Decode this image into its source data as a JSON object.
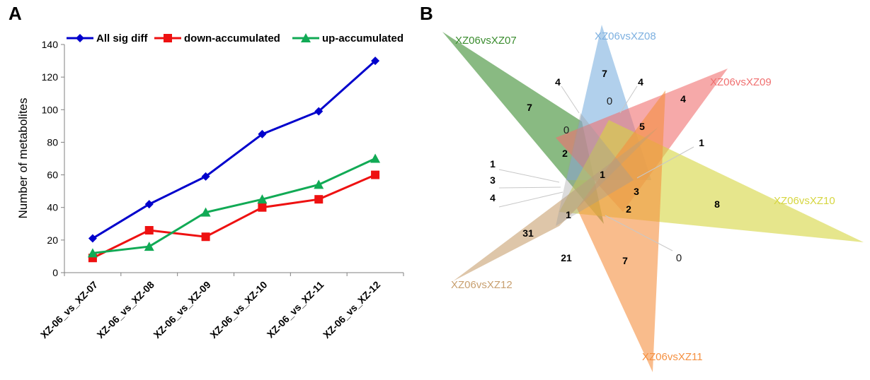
{
  "panels": {
    "a_label": "A",
    "b_label": "B"
  },
  "chart_data": [
    {
      "type": "line",
      "title": "",
      "xlabel": "",
      "ylabel": "Number of metabolites",
      "categories": [
        "XZ-06_vs_XZ-07",
        "XZ-06_vs_XZ-08",
        "XZ-06_vs_XZ-09",
        "XZ-06_vs_XZ-10",
        "XZ-06_vs_XZ-11",
        "XZ-06_vs_XZ-12"
      ],
      "ylim": [
        0,
        140
      ],
      "yticks": [
        0,
        20,
        40,
        60,
        80,
        100,
        120,
        140
      ],
      "legend_position": "top",
      "series": [
        {
          "name": "All sig diff",
          "color": "#0000CC",
          "marker": "diamond",
          "values": [
            21,
            42,
            59,
            85,
            99,
            130
          ]
        },
        {
          "name": "down-accumulated",
          "color": "#EE1111",
          "marker": "square",
          "values": [
            9,
            26,
            22,
            40,
            45,
            60
          ]
        },
        {
          "name": "up-accumulated",
          "color": "#11AA55",
          "marker": "triangle",
          "values": [
            12,
            16,
            37,
            45,
            54,
            70
          ]
        }
      ]
    },
    {
      "type": "venn",
      "sets": [
        {
          "name": "XZ06vsXZ07",
          "color": "#3A8C2E"
        },
        {
          "name": "XZ06vsXZ08",
          "color": "#7DB0E0"
        },
        {
          "name": "XZ06vsXZ09",
          "color": "#F07070"
        },
        {
          "name": "XZ06vsXZ10",
          "color": "#D6D640"
        },
        {
          "name": "XZ06vsXZ11",
          "color": "#F59040"
        },
        {
          "name": "XZ06vsXZ12",
          "color": "#C8A070"
        }
      ],
      "counts": [
        "7",
        "7",
        "4",
        "8",
        "7",
        "31",
        "4",
        "4",
        "0",
        "0",
        "5",
        "2",
        "1",
        "1",
        "3",
        "4",
        "1",
        "3",
        "2",
        "1",
        "21",
        "0"
      ]
    }
  ]
}
